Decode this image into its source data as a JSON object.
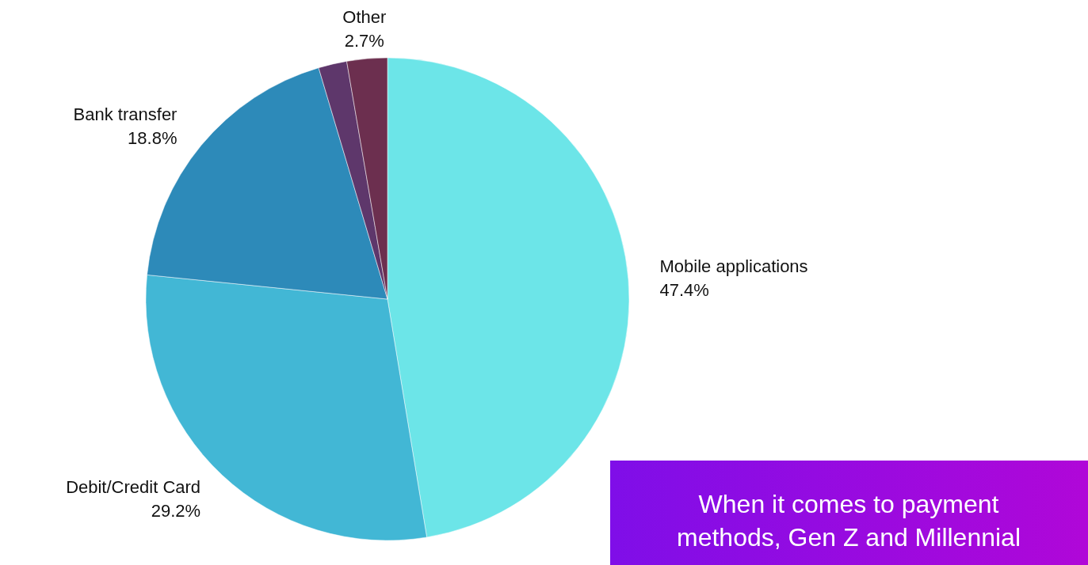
{
  "chart_data": {
    "type": "pie",
    "categories": [
      "Mobile applications",
      "Debit/Credit Card",
      "Bank transfer",
      null,
      "Other"
    ],
    "values": [
      47.4,
      29.2,
      18.8,
      1.9,
      2.7
    ],
    "colors": [
      "#6ce5e8",
      "#42b7d5",
      "#2d8ab9",
      "#5e376b",
      "#6c2f4f"
    ],
    "value_labels": [
      "47.4%",
      "29.2%",
      "18.8%",
      null,
      "2.7%"
    ],
    "annotations": [
      "When it comes to payment methods, Gen Z and Millennial"
    ]
  }
}
